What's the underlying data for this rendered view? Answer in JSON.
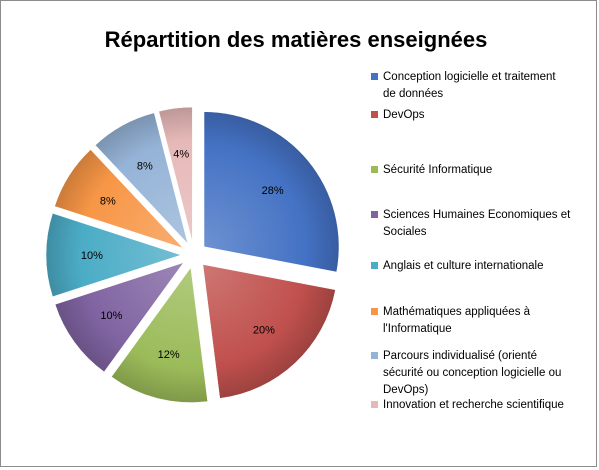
{
  "chart_data": {
    "type": "pie",
    "title": "Répartition des matières enseignées",
    "exploded": true,
    "legend_position": "right",
    "slices": [
      {
        "label": "Conception logicielle et traitement de données",
        "value": 28,
        "data_label": "28%",
        "color": "#4472c4"
      },
      {
        "label": "DevOps",
        "value": 20,
        "data_label": "20%",
        "color": "#c0504d"
      },
      {
        "label": "Sécurité Informatique",
        "value": 12,
        "data_label": "12%",
        "color": "#9bbb59"
      },
      {
        "label": "Sciences Humaines Economiques et Sociales",
        "value": 10,
        "data_label": "10%",
        "color": "#8064a2"
      },
      {
        "label": "Anglais et culture internationale",
        "value": 10,
        "data_label": "10%",
        "color": "#4bacc6"
      },
      {
        "label": "Mathématiques appliquées à l'Informatique",
        "value": 8,
        "data_label": "8%",
        "color": "#f79646"
      },
      {
        "label": "Parcours individualisé (orienté sécurité ou conception logicielle ou DevOps)",
        "value": 8,
        "data_label": "8%",
        "color": "#95b3d7"
      },
      {
        "label": "Innovation et recherche scientifique",
        "value": 4,
        "data_label": "4%",
        "color": "#e6b9b8"
      }
    ]
  }
}
